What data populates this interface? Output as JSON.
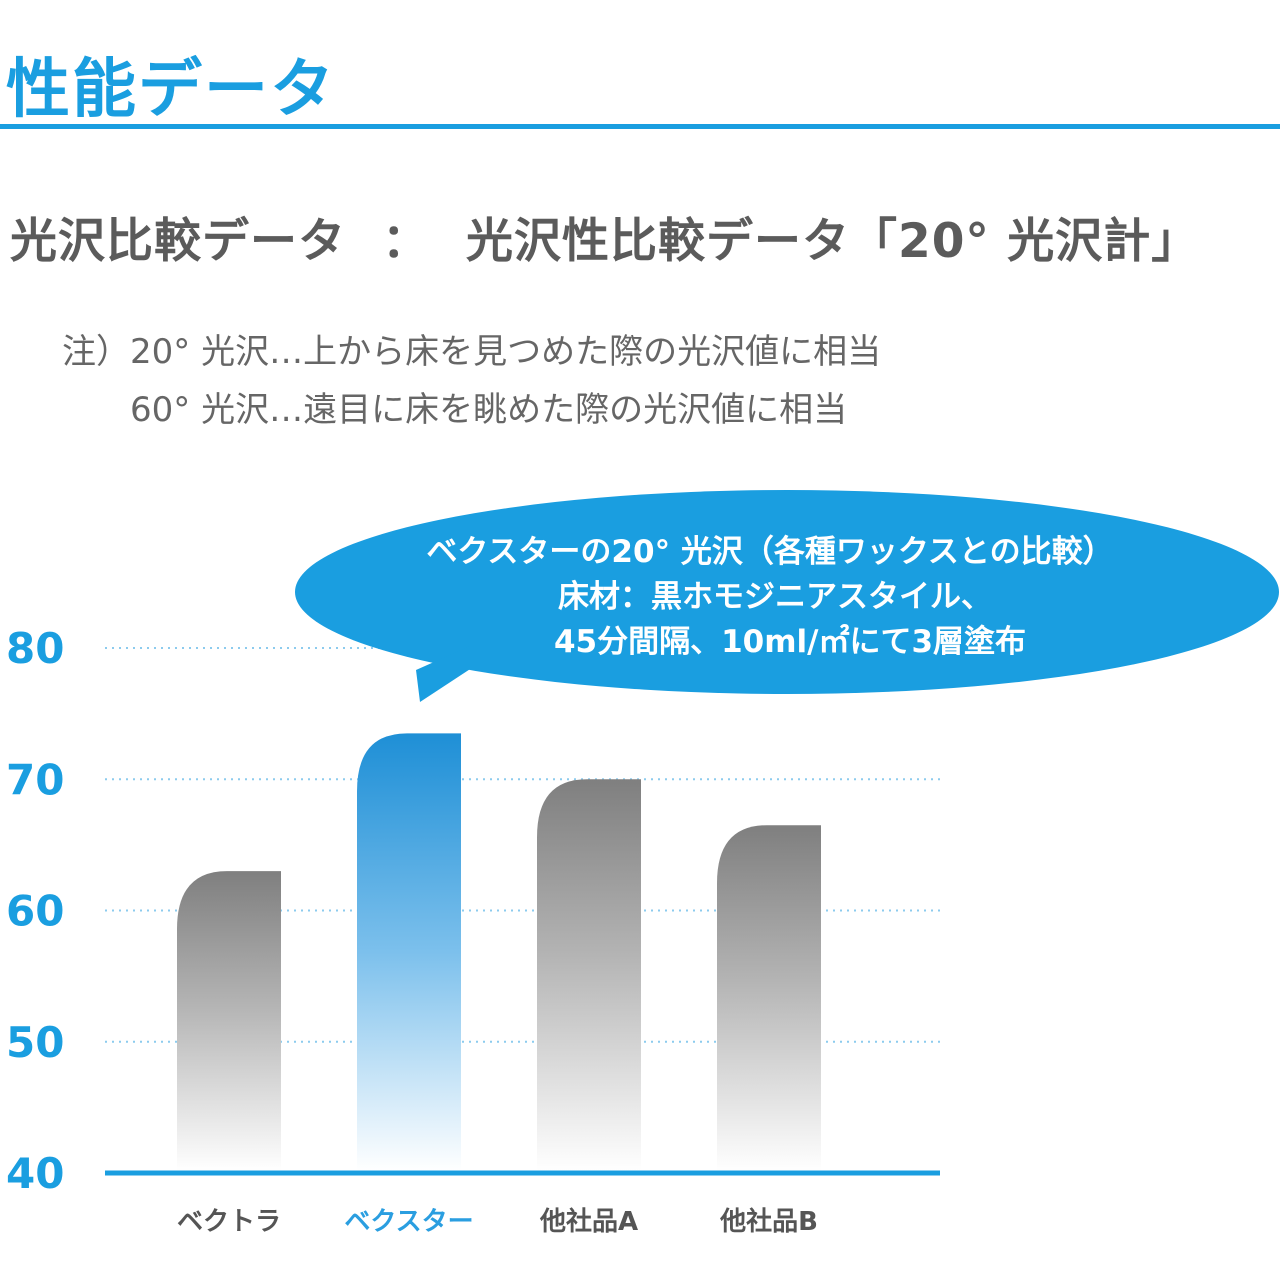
{
  "header": {
    "title": "性能データ"
  },
  "subtitle": {
    "left": "光沢比較データ",
    "separator": "：",
    "right": "光沢性比較データ「20° 光沢計」"
  },
  "notes": [
    "注）20° 光沢…上から床を見つめた際の光沢値に相当",
    "60° 光沢…遠目に床を眺めた際の光沢値に相当"
  ],
  "callout": {
    "lines": [
      "ベクスターの20° 光沢（各種ワックスとの比較）",
      "床材：黒ホモジニアスタイル、",
      "45分間隔、10ml/㎡にて3層塗布"
    ]
  },
  "colors": {
    "accent": "#1a9ee0",
    "bar_gray": "#808080",
    "bar_blue": "#1e8fd6"
  },
  "chart_data": {
    "type": "bar",
    "title": "ベクスターの20° 光沢（各種ワックスとの比較）",
    "categories": [
      "ベクトラ",
      "ベクスター",
      "他社品A",
      "他社品B"
    ],
    "values": [
      63,
      73.5,
      70,
      66.5
    ],
    "highlight_index": 1,
    "ylim": [
      40,
      80
    ],
    "yticks": [
      40,
      50,
      60,
      70,
      80
    ],
    "xlabel": "",
    "ylabel": "",
    "grid": true
  }
}
